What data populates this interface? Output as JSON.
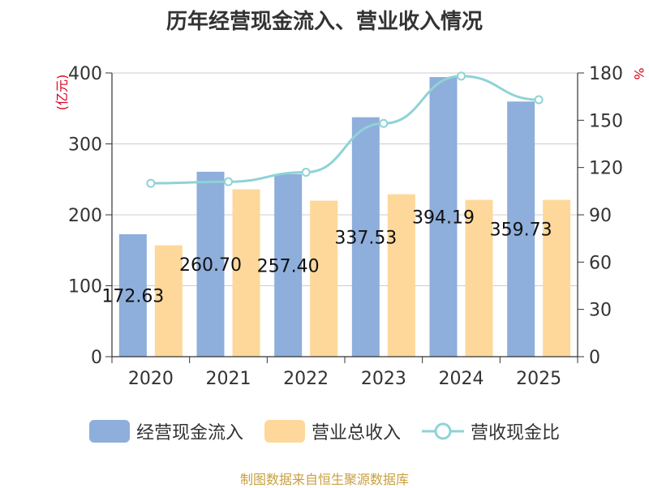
{
  "title": "历年经营现金流入、营业收入情况",
  "left_unit": "(亿元)",
  "right_unit": "%",
  "source": "制图数据来自恒生聚源数据库",
  "colors": {
    "cashflow": "#8eaedb",
    "revenue": "#fdd89a",
    "ratio": "#8fd3d6"
  },
  "chart_data": {
    "type": "bar",
    "title": "历年经营现金流入、营业收入情况",
    "categories": [
      "2020",
      "2021",
      "2022",
      "2023",
      "2024",
      "2025"
    ],
    "series": [
      {
        "name": "经营现金流入",
        "values": [
          172.63,
          260.7,
          257.4,
          337.53,
          394.19,
          359.73
        ],
        "axis": "left",
        "type": "bar"
      },
      {
        "name": "营业总收入",
        "values": [
          157,
          236,
          220,
          229,
          221,
          221
        ],
        "axis": "left",
        "type": "bar"
      },
      {
        "name": "营收现金比",
        "values": [
          110,
          111,
          117,
          148,
          178,
          163
        ],
        "axis": "right",
        "type": "line"
      }
    ],
    "data_labels": [
      "172.63",
      "260.70",
      "257.40",
      "337.53",
      "394.19",
      "359.73"
    ],
    "ylim_left": [
      0,
      400
    ],
    "yticks_left": [
      0,
      100,
      200,
      300,
      400
    ],
    "ylim_right": [
      0,
      180
    ],
    "yticks_right": [
      0,
      30,
      60,
      90,
      120,
      150,
      180
    ],
    "grid": true,
    "legend_position": "bottom"
  }
}
